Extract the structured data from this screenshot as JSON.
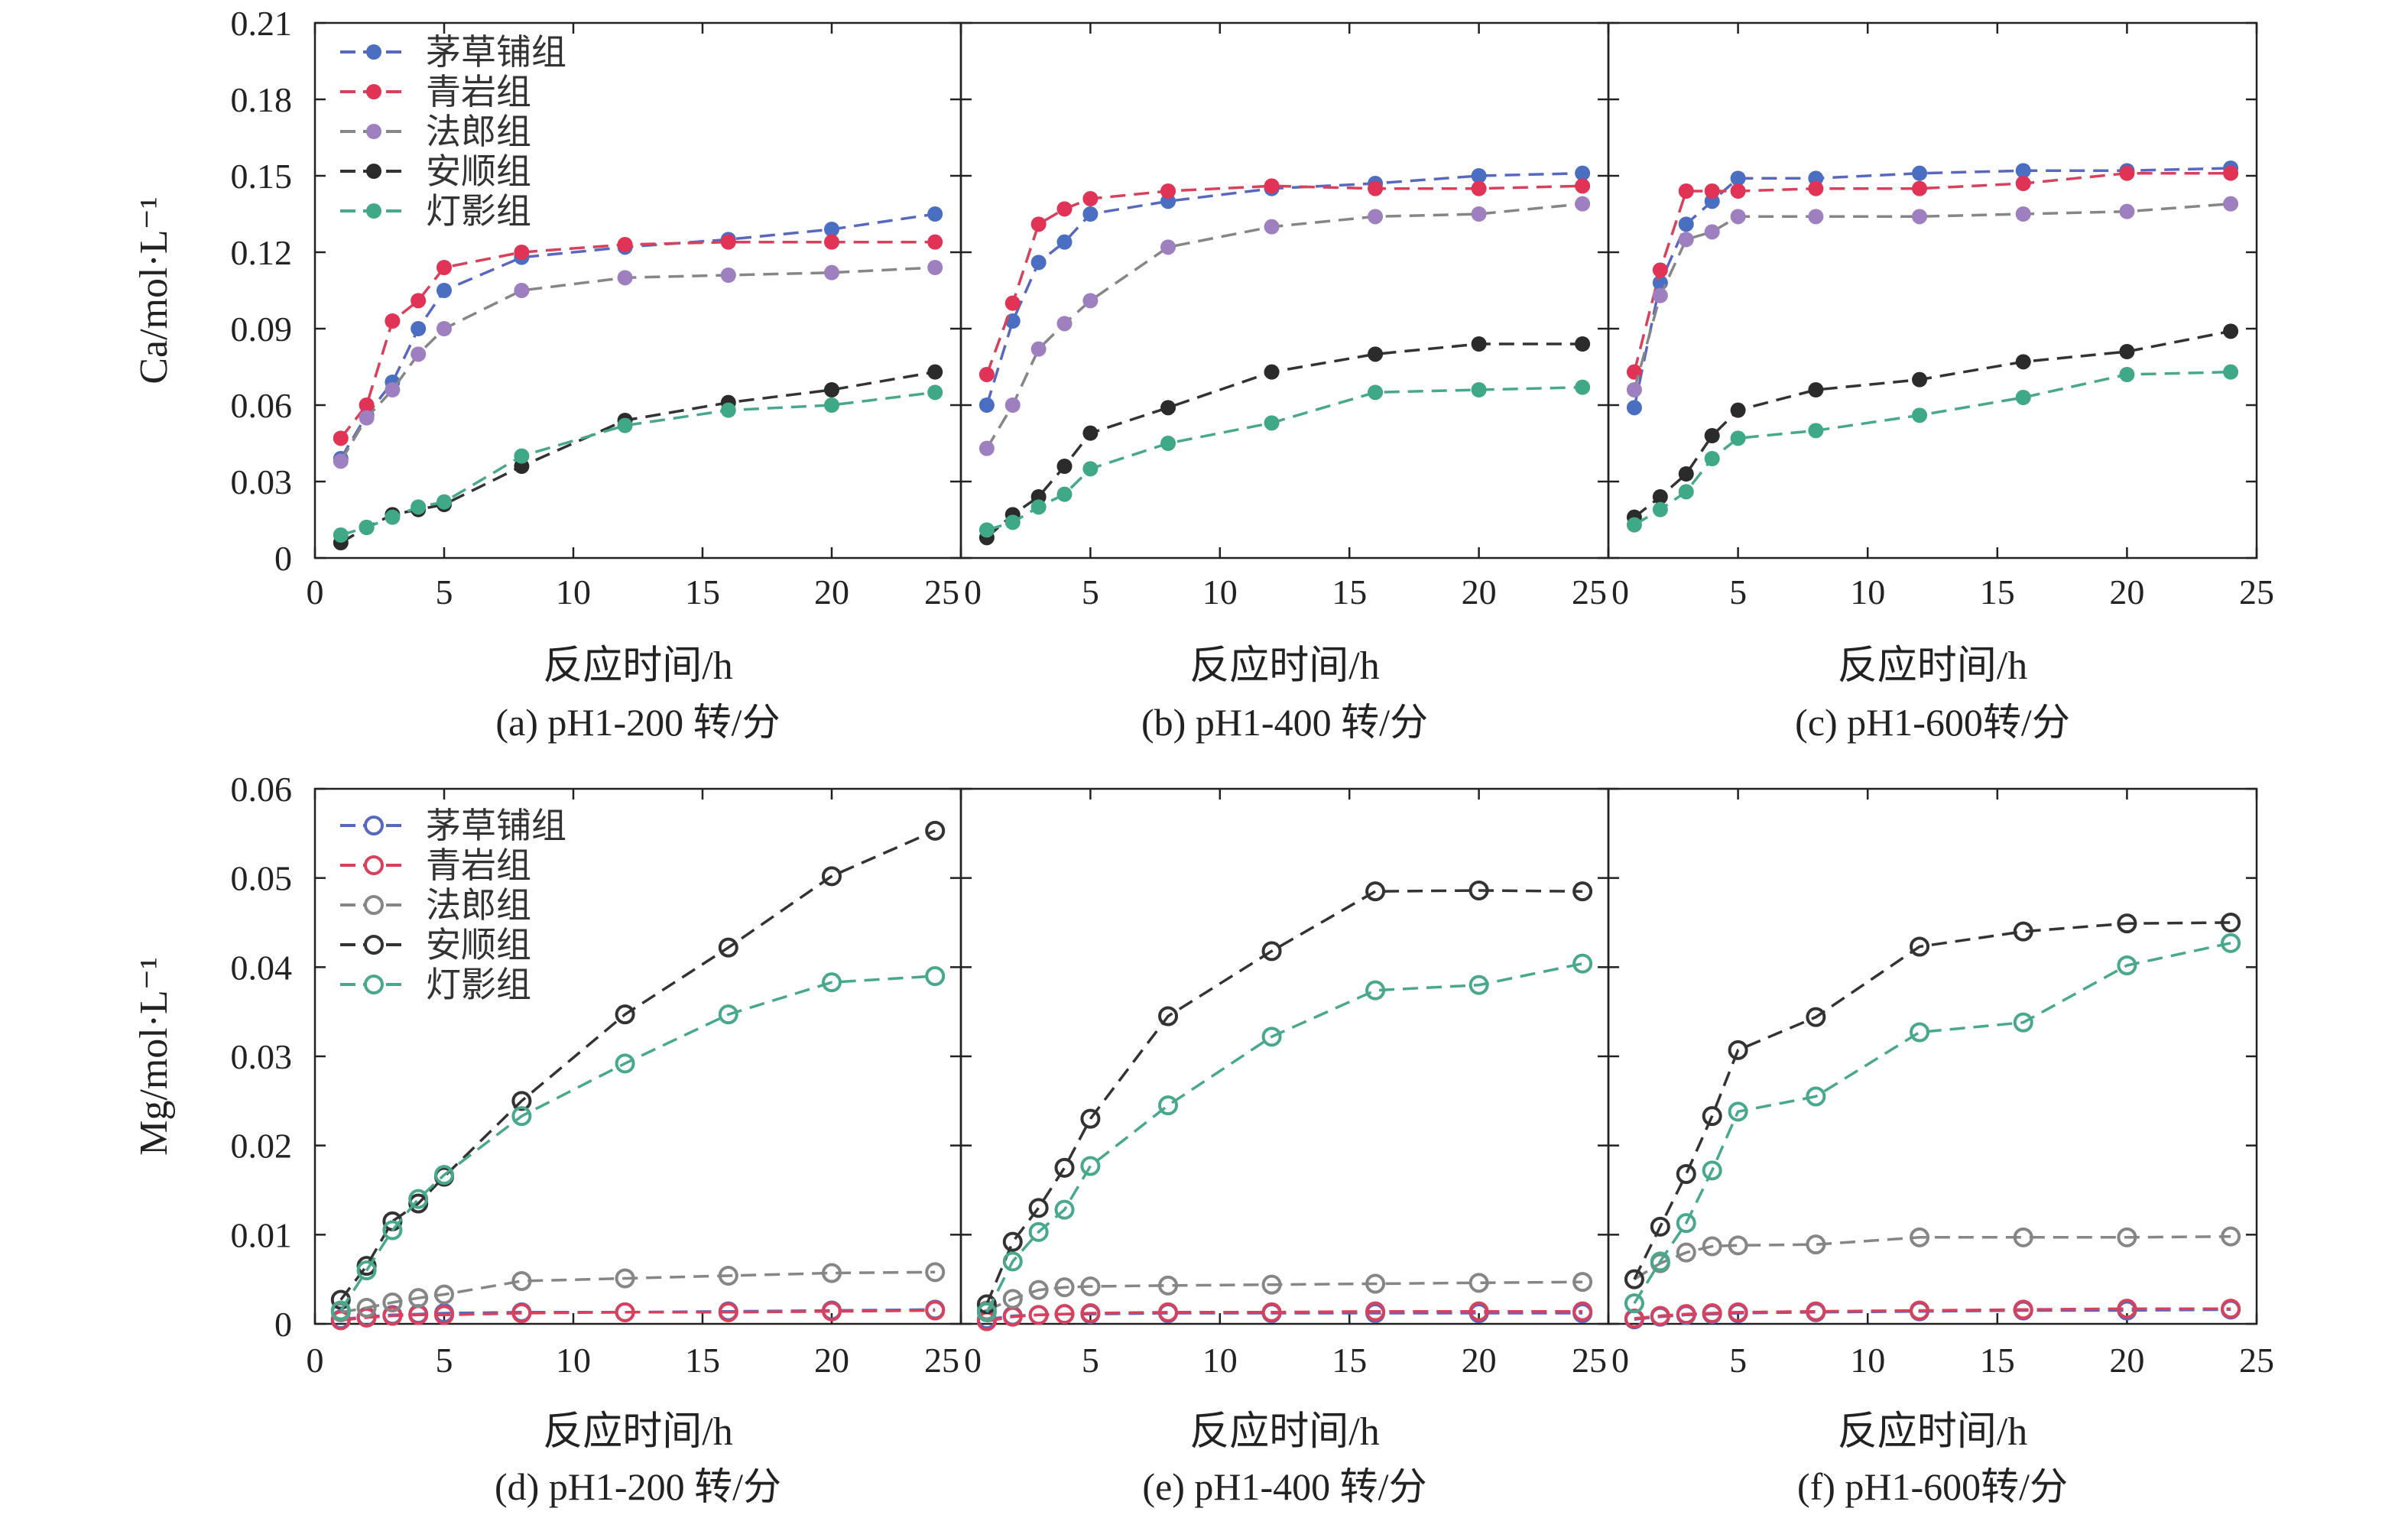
{
  "figure": {
    "rows": [
      {
        "ylabel": "Ca/mol·L⁻¹",
        "ylim": [
          0,
          0.21
        ],
        "yticks": [
          "0",
          "0.03",
          "0.06",
          "0.09",
          "0.12",
          "0.15",
          "0.18",
          "0.21"
        ],
        "marker": "filled"
      },
      {
        "ylabel": "Mg/mol·L⁻¹",
        "ylim": [
          0,
          0.06
        ],
        "yticks": [
          "0",
          "0.01",
          "0.02",
          "0.03",
          "0.04",
          "0.05",
          "0.06"
        ],
        "marker": "open"
      }
    ],
    "xticks": [
      "0",
      "5",
      "10",
      "15",
      "20",
      "25"
    ],
    "xlabel": "反应时间/h",
    "legend": [
      "茅草铺组",
      "青岩组",
      "法郎组",
      "安顺组",
      "灯影组"
    ],
    "legend_position": "top-left",
    "colors": [
      "#4a6fc2",
      "#e03355",
      "#9e7fbf",
      "#2b2b2b",
      "#3fa886"
    ],
    "line_colors": [
      "#5868c0",
      "#d8405c",
      "#868686",
      "#333333",
      "#48a88c"
    ]
  },
  "chart_data": [
    {
      "type": "line",
      "caption": "(a) pH1-200 转/分",
      "x": [
        1,
        2,
        3,
        4,
        5,
        8,
        12,
        16,
        20,
        24
      ],
      "xlabel": "反应时间/h",
      "ylabel": "Ca/mol·L⁻¹",
      "xlim": [
        0,
        25
      ],
      "ylim": [
        0,
        0.21
      ],
      "series": [
        {
          "name": "茅草铺组",
          "values": [
            0.039,
            0.056,
            0.069,
            0.09,
            0.105,
            0.118,
            0.122,
            0.125,
            0.129,
            0.135
          ]
        },
        {
          "name": "青岩组",
          "values": [
            0.047,
            0.06,
            0.093,
            0.101,
            0.114,
            0.12,
            0.123,
            0.124,
            0.124,
            0.124
          ]
        },
        {
          "name": "法郎组",
          "values": [
            0.038,
            0.055,
            0.066,
            0.08,
            0.09,
            0.105,
            0.11,
            0.111,
            0.112,
            0.114
          ]
        },
        {
          "name": "安顺组",
          "values": [
            0.006,
            0.012,
            0.017,
            0.019,
            0.021,
            0.036,
            0.054,
            0.061,
            0.066,
            0.073
          ]
        },
        {
          "name": "灯影组",
          "values": [
            0.009,
            0.012,
            0.016,
            0.02,
            0.022,
            0.04,
            0.052,
            0.058,
            0.06,
            0.065
          ]
        }
      ]
    },
    {
      "type": "line",
      "caption": "(b) pH1-400 转/分",
      "x": [
        1,
        2,
        3,
        4,
        5,
        8,
        12,
        16,
        20,
        24
      ],
      "xlabel": "反应时间/h",
      "ylabel": "Ca/mol·L⁻¹",
      "xlim": [
        0,
        25
      ],
      "ylim": [
        0,
        0.21
      ],
      "series": [
        {
          "name": "茅草铺组",
          "values": [
            0.06,
            0.093,
            0.116,
            0.124,
            0.135,
            0.14,
            0.145,
            0.147,
            0.15,
            0.151
          ]
        },
        {
          "name": "青岩组",
          "values": [
            0.072,
            0.1,
            0.131,
            0.137,
            0.141,
            0.144,
            0.146,
            0.145,
            0.145,
            0.146
          ]
        },
        {
          "name": "法郎组",
          "values": [
            0.043,
            0.06,
            0.082,
            0.092,
            0.101,
            0.122,
            0.13,
            0.134,
            0.135,
            0.139
          ]
        },
        {
          "name": "安顺组",
          "values": [
            0.008,
            0.017,
            0.024,
            0.036,
            0.049,
            0.059,
            0.073,
            0.08,
            0.084,
            0.084
          ]
        },
        {
          "name": "灯影组",
          "values": [
            0.011,
            0.014,
            0.02,
            0.025,
            0.035,
            0.045,
            0.053,
            0.065,
            0.066,
            0.067
          ]
        }
      ]
    },
    {
      "type": "line",
      "caption": "(c) pH1-600转/分",
      "x": [
        1,
        2,
        3,
        4,
        5,
        8,
        12,
        16,
        20,
        24
      ],
      "xlabel": "反应时间/h",
      "ylabel": "Ca/mol·L⁻¹",
      "xlim": [
        0,
        25
      ],
      "ylim": [
        0,
        0.21
      ],
      "series": [
        {
          "name": "茅草铺组",
          "values": [
            0.059,
            0.108,
            0.131,
            0.14,
            0.149,
            0.149,
            0.151,
            0.152,
            0.152,
            0.153
          ]
        },
        {
          "name": "青岩组",
          "values": [
            0.073,
            0.113,
            0.144,
            0.144,
            0.144,
            0.145,
            0.145,
            0.147,
            0.151,
            0.151
          ]
        },
        {
          "name": "法郎组",
          "values": [
            0.066,
            0.103,
            0.125,
            0.128,
            0.134,
            0.134,
            0.134,
            0.135,
            0.136,
            0.139
          ]
        },
        {
          "name": "安顺组",
          "values": [
            0.016,
            0.024,
            0.033,
            0.048,
            0.058,
            0.066,
            0.07,
            0.077,
            0.081,
            0.089
          ]
        },
        {
          "name": "灯影组",
          "values": [
            0.013,
            0.019,
            0.026,
            0.039,
            0.047,
            0.05,
            0.056,
            0.063,
            0.072,
            0.073
          ]
        }
      ]
    },
    {
      "type": "line",
      "caption": "(d) pH1-200 转/分",
      "x": [
        1,
        2,
        3,
        4,
        5,
        8,
        12,
        16,
        20,
        24
      ],
      "xlabel": "反应时间/h",
      "ylabel": "Mg/mol·L⁻¹",
      "xlim": [
        0,
        25
      ],
      "ylim": [
        0,
        0.06
      ],
      "series": [
        {
          "name": "茅草铺组",
          "values": [
            0.0005,
            0.0008,
            0.001,
            0.0011,
            0.0012,
            0.0013,
            0.0013,
            0.0014,
            0.0015,
            0.0016
          ]
        },
        {
          "name": "青岩组",
          "values": [
            0.0004,
            0.0007,
            0.0009,
            0.001,
            0.001,
            0.0012,
            0.0013,
            0.0013,
            0.0014,
            0.0015
          ]
        },
        {
          "name": "法郎组",
          "values": [
            0.0013,
            0.0018,
            0.0024,
            0.0029,
            0.0033,
            0.0048,
            0.0051,
            0.0054,
            0.0057,
            0.0058
          ]
        },
        {
          "name": "安顺组",
          "values": [
            0.0027,
            0.0065,
            0.0115,
            0.0135,
            0.0165,
            0.025,
            0.0347,
            0.0422,
            0.0502,
            0.0553
          ]
        },
        {
          "name": "灯影组",
          "values": [
            0.0015,
            0.006,
            0.0105,
            0.014,
            0.0167,
            0.0233,
            0.0292,
            0.0347,
            0.0383,
            0.039
          ]
        }
      ]
    },
    {
      "type": "line",
      "caption": "(e) pH1-400 转/分",
      "x": [
        1,
        2,
        3,
        4,
        5,
        8,
        12,
        16,
        20,
        24
      ],
      "xlabel": "反应时间/h",
      "ylabel": "Mg/mol·L⁻¹",
      "xlim": [
        0,
        25
      ],
      "ylim": [
        0,
        0.06
      ],
      "series": [
        {
          "name": "茅草铺组",
          "values": [
            0.0005,
            0.0009,
            0.001,
            0.0011,
            0.0011,
            0.0012,
            0.0012,
            0.0012,
            0.0012,
            0.0012
          ]
        },
        {
          "name": "青岩组",
          "values": [
            0.0003,
            0.0008,
            0.001,
            0.0011,
            0.0012,
            0.0013,
            0.0013,
            0.0014,
            0.0014,
            0.0014
          ]
        },
        {
          "name": "法郎组",
          "values": [
            0.0015,
            0.0028,
            0.0038,
            0.0041,
            0.0042,
            0.0043,
            0.0044,
            0.0045,
            0.0046,
            0.0047
          ]
        },
        {
          "name": "安顺组",
          "values": [
            0.0022,
            0.0092,
            0.013,
            0.0175,
            0.023,
            0.0345,
            0.0418,
            0.0485,
            0.0486,
            0.0485
          ]
        },
        {
          "name": "灯影组",
          "values": [
            0.0013,
            0.007,
            0.0103,
            0.0128,
            0.0177,
            0.0245,
            0.0322,
            0.0374,
            0.038,
            0.0404
          ]
        }
      ]
    },
    {
      "type": "line",
      "caption": "(f) pH1-600转/分",
      "x": [
        1,
        2,
        3,
        4,
        5,
        8,
        12,
        16,
        20,
        24
      ],
      "xlabel": "反应时间/h",
      "ylabel": "Mg/mol·L⁻¹",
      "xlim": [
        0,
        25
      ],
      "ylim": [
        0,
        0.06
      ],
      "series": [
        {
          "name": "茅草铺组",
          "values": [
            0.0005,
            0.0008,
            0.001,
            0.0011,
            0.0012,
            0.0013,
            0.0014,
            0.0015,
            0.0015,
            0.0016
          ]
        },
        {
          "name": "青岩组",
          "values": [
            0.0006,
            0.0009,
            0.0011,
            0.0012,
            0.0013,
            0.0014,
            0.0015,
            0.0016,
            0.0017,
            0.0017
          ]
        },
        {
          "name": "法郎组",
          "values": [
            0.005,
            0.0068,
            0.008,
            0.0087,
            0.0088,
            0.0089,
            0.0097,
            0.0097,
            0.0097,
            0.0098
          ]
        },
        {
          "name": "安顺组",
          "values": [
            0.005,
            0.0109,
            0.0168,
            0.0233,
            0.0307,
            0.0344,
            0.0423,
            0.044,
            0.0449,
            0.045
          ]
        },
        {
          "name": "灯影组",
          "values": [
            0.0023,
            0.007,
            0.0113,
            0.0172,
            0.0238,
            0.0255,
            0.0327,
            0.0338,
            0.0402,
            0.0427
          ]
        }
      ]
    }
  ]
}
